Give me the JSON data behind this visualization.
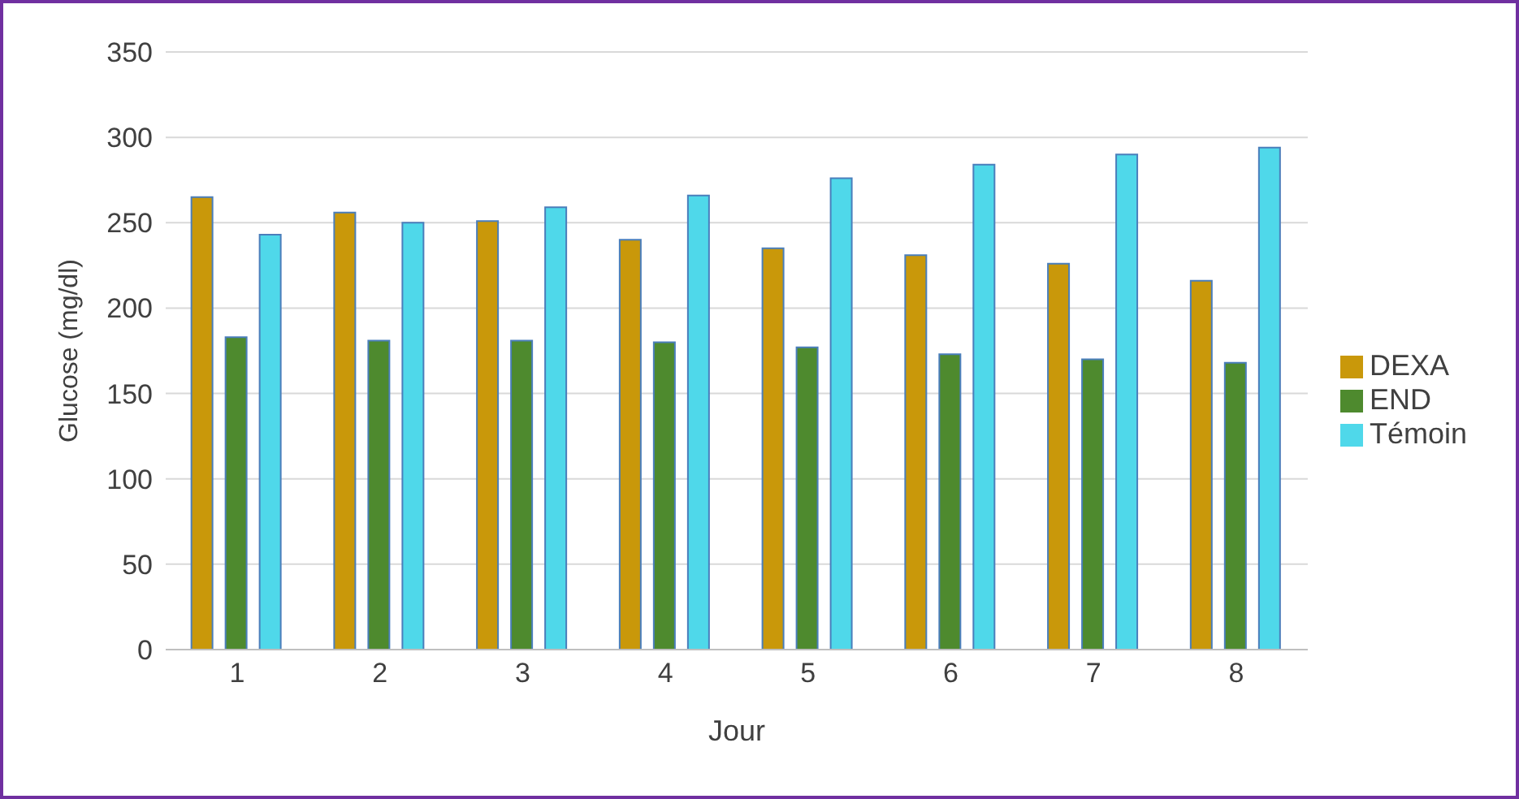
{
  "chart_data": {
    "type": "bar",
    "xlabel": "Jour",
    "ylabel": "Glucose (mg/dl)",
    "categories": [
      "1",
      "2",
      "3",
      "4",
      "5",
      "6",
      "7",
      "8"
    ],
    "series": [
      {
        "name": "DEXA",
        "color": "#c9980a",
        "values": [
          265,
          256,
          251,
          240,
          235,
          231,
          226,
          216
        ]
      },
      {
        "name": "END",
        "color": "#4e8a2e",
        "values": [
          183,
          181,
          181,
          180,
          177,
          173,
          170,
          168
        ]
      },
      {
        "name": "Témoin",
        "color": "#4fd8ea",
        "values": [
          243,
          250,
          259,
          266,
          276,
          284,
          290,
          294
        ]
      }
    ],
    "ylim": [
      0,
      350
    ],
    "yticks": [
      0,
      50,
      100,
      150,
      200,
      250,
      300,
      350
    ],
    "grid": "y",
    "legend": "right"
  }
}
